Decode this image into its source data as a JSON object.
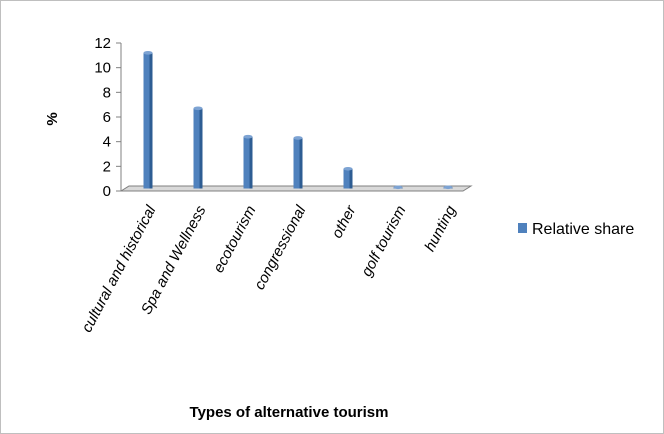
{
  "chart_data": {
    "type": "bar",
    "title": "",
    "xlabel": "Types of alternative tourism",
    "ylabel": "%",
    "categories": [
      "cultural and historical",
      "Spa and Wellness",
      "ecotourism",
      "congressional",
      "other",
      "golf tourism",
      "hunting"
    ],
    "series": [
      {
        "name": "Relative share",
        "values": [
          11.0,
          6.5,
          4.2,
          4.1,
          1.6,
          0.1,
          0.1
        ]
      }
    ],
    "ylim": [
      0,
      12
    ],
    "yticks": [
      "0",
      "2",
      "4",
      "6",
      "8",
      "10",
      "12"
    ],
    "grid": false,
    "legend": "right",
    "colors": {
      "bar": "#4f81bd",
      "bar_dark": "#2e5d93",
      "bar_light": "#7da3d3",
      "axis": "#808080",
      "floor": "#d9d9d9",
      "frame": "#bfbfbf"
    }
  }
}
